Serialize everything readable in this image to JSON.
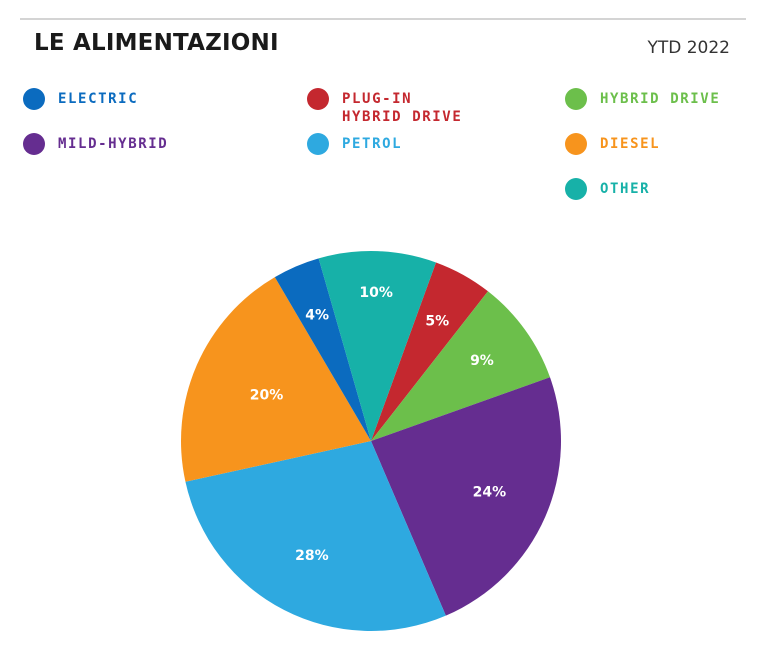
{
  "header": {
    "title": "LE ALIMENTAZIONI",
    "subtitle": "YTD 2022"
  },
  "legend": [
    {
      "label": "ELECTRIC",
      "color": "#0b6bbf"
    },
    {
      "label": "PLUG-IN\nHYBRID DRIVE",
      "color": "#c4282f"
    },
    {
      "label": "HYBRID DRIVE",
      "color": "#6cbf4b"
    },
    {
      "label": "MILD-HYBRID",
      "color": "#652d90"
    },
    {
      "label": "PETROL",
      "color": "#2ea9e0"
    },
    {
      "label": "DIESEL",
      "color": "#f7941d"
    },
    {
      "label": "OTHER",
      "color": "#17b1a8"
    }
  ],
  "chart_data": {
    "type": "pie",
    "title": "LE ALIMENTAZIONI",
    "subtitle": "YTD 2022",
    "legend_placement": "top",
    "slices": [
      {
        "name": "PLUG-IN HYBRID DRIVE",
        "value": 5,
        "label": "5%",
        "color": "#c4282f"
      },
      {
        "name": "HYBRID DRIVE",
        "value": 9,
        "label": "9%",
        "color": "#6cbf4b"
      },
      {
        "name": "MILD-HYBRID",
        "value": 24,
        "label": "24%",
        "color": "#652d90"
      },
      {
        "name": "PETROL",
        "value": 28,
        "label": "28%",
        "color": "#2ea9e0"
      },
      {
        "name": "DIESEL",
        "value": 20,
        "label": "20%",
        "color": "#f7941d"
      },
      {
        "name": "ELECTRIC",
        "value": 4,
        "label": "4%",
        "color": "#0b6bbf"
      },
      {
        "name": "OTHER",
        "value": 10,
        "label": "10%",
        "color": "#17b1a8"
      }
    ]
  }
}
